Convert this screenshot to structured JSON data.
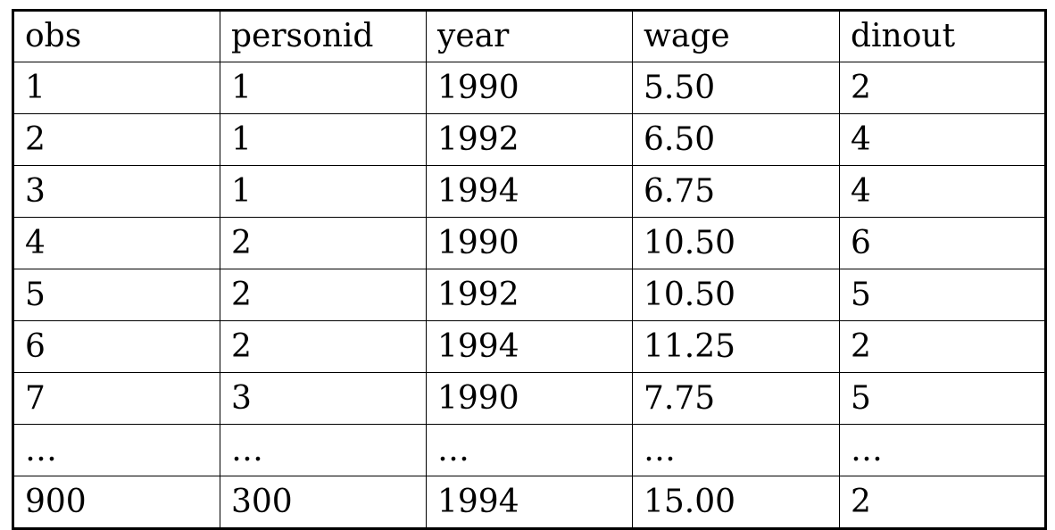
{
  "table": {
    "columns": [
      "obs",
      "personid",
      "year",
      "wage",
      "dinout"
    ],
    "rows": [
      [
        "1",
        "1",
        "1990",
        "5.50",
        "2"
      ],
      [
        "2",
        "1",
        "1992",
        "6.50",
        "4"
      ],
      [
        "3",
        "1",
        "1994",
        "6.75",
        "4"
      ],
      [
        "4",
        "2",
        "1990",
        "10.50",
        "6"
      ],
      [
        "5",
        "2",
        "1992",
        "10.50",
        "5"
      ],
      [
        "6",
        "2",
        "1994",
        "11.25",
        "2"
      ],
      [
        "7",
        "3",
        "1990",
        "7.75",
        "5"
      ],
      [
        "…",
        "…",
        "…",
        "…",
        "…"
      ],
      [
        "900",
        "300",
        "1994",
        "15.00",
        "2"
      ]
    ]
  }
}
